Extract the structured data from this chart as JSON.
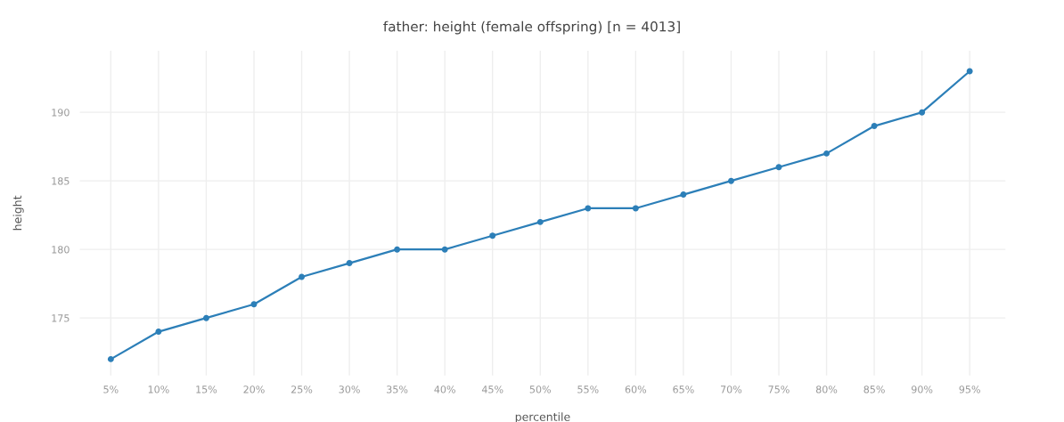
{
  "chart_data": {
    "type": "line",
    "title": "father: height (female offspring) [n = 4013]",
    "xlabel": "percentile",
    "ylabel": "height",
    "categories": [
      "5%",
      "10%",
      "15%",
      "20%",
      "25%",
      "30%",
      "35%",
      "40%",
      "45%",
      "50%",
      "55%",
      "60%",
      "65%",
      "70%",
      "75%",
      "80%",
      "85%",
      "90%",
      "95%"
    ],
    "series": [
      {
        "color": "#2c7fb8",
        "values": [
          172,
          174,
          175,
          176,
          178,
          179,
          180,
          180,
          181,
          182,
          183,
          183,
          184,
          185,
          186,
          187,
          189,
          190,
          193
        ]
      }
    ],
    "ylim": [
      170.8,
      194.5
    ],
    "yticks": [
      175,
      180,
      185,
      190
    ],
    "grid": true,
    "marker": "circle",
    "line_style": "solid",
    "legend": false
  }
}
